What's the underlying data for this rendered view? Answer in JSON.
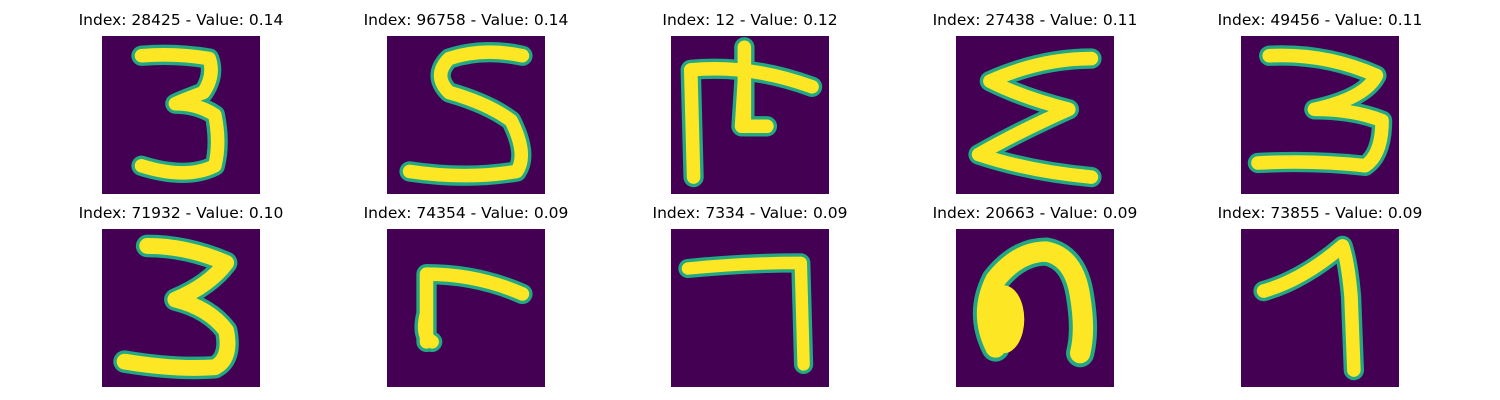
{
  "figure": {
    "colors": {
      "background": "#440154",
      "foreground": "#fde725",
      "edge": "#22a884"
    },
    "panels": [
      {
        "title": "Index: 28425 - Value: 0.14",
        "glyph": "digit-3"
      },
      {
        "title": "Index: 96758 - Value: 0.14",
        "glyph": "digit-5"
      },
      {
        "title": "Index: 12 - Value: 0.12",
        "glyph": "glyph-pi-like"
      },
      {
        "title": "Index: 27438 - Value: 0.11",
        "glyph": "glyph-sigma-like"
      },
      {
        "title": "Index: 49456 - Value: 0.11",
        "glyph": "digit-3"
      },
      {
        "title": "Index: 71932 - Value: 0.10",
        "glyph": "digit-3"
      },
      {
        "title": "Index: 74354 - Value: 0.09",
        "glyph": "glyph-r-like"
      },
      {
        "title": "Index: 7334 - Value: 0.09",
        "glyph": "digit-7"
      },
      {
        "title": "Index: 20663 - Value: 0.09",
        "glyph": "glyph-n-like"
      },
      {
        "title": "Index: 73855 - Value: 0.09",
        "glyph": "digit-1"
      }
    ]
  }
}
